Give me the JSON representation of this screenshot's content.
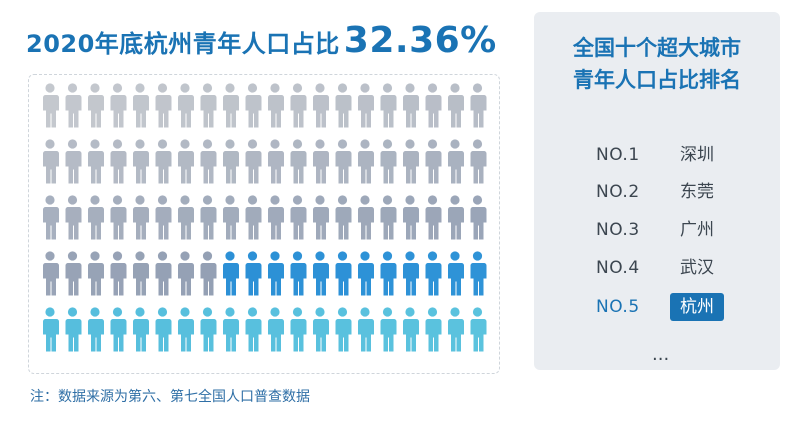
{
  "header": {
    "title": "2020年底杭州青年人口占比",
    "value": "32.36%"
  },
  "pictogram": {
    "rows": 5,
    "cols": 20,
    "highlighted_fraction": 0.3236,
    "colors": {
      "base_light": "#c4c8ce",
      "base_mid": "#8e9bb1",
      "highlight_mid": "#2a8ed6",
      "highlight_light": "#5bc3de"
    }
  },
  "note": "注：数据来源为第六、第七全国人口普查数据",
  "ranking": {
    "title_line1": "全国十个超大城市",
    "title_line2": "青年人口占比排名",
    "items": [
      {
        "rank": "NO.1",
        "city": "深圳"
      },
      {
        "rank": "NO.2",
        "city": "东莞"
      },
      {
        "rank": "NO.3",
        "city": "广州"
      },
      {
        "rank": "NO.4",
        "city": "武汉"
      },
      {
        "rank": "NO.5",
        "city": "杭州"
      }
    ],
    "more": "...",
    "highlight_color": "#1a73b4"
  }
}
